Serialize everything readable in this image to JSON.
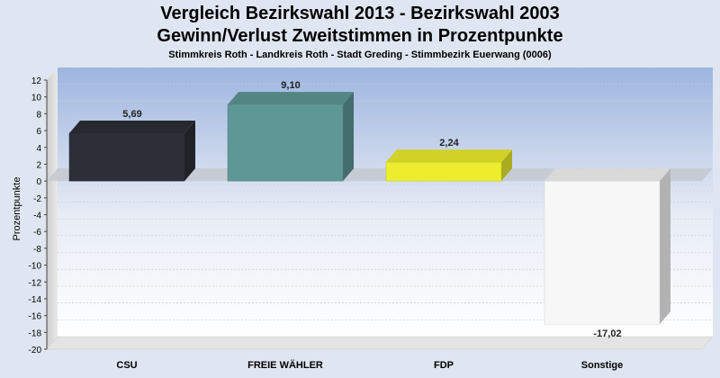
{
  "chart_data": {
    "type": "bar",
    "title": "Vergleich Bezirkswahl 2013 - Bezirkswahl 2003",
    "subtitle": "Gewinn/Verlust Zweitstimmen in Prozentpunkte",
    "caption": "Stimmkreis Roth - Landkreis Roth - Stadt Greding - Stimmbezirk Euerwang (0006)",
    "ylabel": "Prozentpunkte",
    "categories": [
      "CSU",
      "FREIE WÄHLER",
      "FDP",
      "Sonstige"
    ],
    "values": [
      5.69,
      9.1,
      2.24,
      -17.02
    ],
    "value_labels": [
      "5,69",
      "9,10",
      "2,24",
      "-17,02"
    ],
    "colors": [
      "#2c2f38",
      "#5f9797",
      "#eded2e",
      "#f7f7f7"
    ],
    "ylim": [
      -20,
      12
    ],
    "yticks": [
      "12",
      "10",
      "8",
      "6",
      "4",
      "2",
      "0",
      "-2",
      "-4",
      "-6",
      "-8",
      "-10",
      "-12",
      "-14",
      "-16",
      "-18",
      "-20"
    ],
    "grid": true,
    "legend": "none",
    "style": "3d"
  }
}
